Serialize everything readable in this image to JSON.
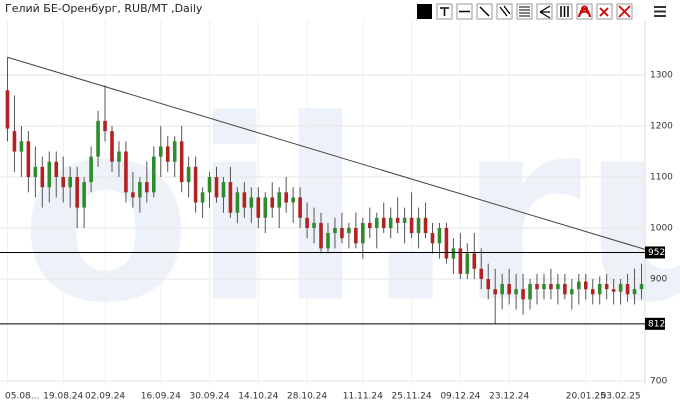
{
  "chart_data": {
    "type": "candlestick",
    "title": "Гелий БЕ-Оренбург, RUB/MT ,Daily",
    "watermark": "oil.ru",
    "categories": [
      "05.08...",
      null,
      null,
      null,
      null,
      null,
      null,
      null,
      "19.08.24",
      null,
      null,
      null,
      null,
      null,
      "02.09.24",
      null,
      null,
      null,
      null,
      null,
      null,
      null,
      "16.09.24",
      null,
      null,
      null,
      null,
      null,
      null,
      "30.09.24",
      null,
      null,
      null,
      null,
      null,
      null,
      "14.10.24",
      null,
      null,
      null,
      null,
      null,
      null,
      "28.10.24",
      null,
      null,
      null,
      null,
      null,
      null,
      null,
      "11.11.24",
      null,
      null,
      null,
      null,
      null,
      null,
      "25.11.24",
      null,
      null,
      null,
      null,
      null,
      null,
      "09.12.24",
      null,
      null,
      null,
      null,
      null,
      null,
      "23.12.24",
      null,
      null,
      null,
      null,
      null,
      null,
      null,
      null,
      null,
      null,
      "20.01.25",
      null,
      null,
      null,
      null,
      "03.02.25",
      null,
      null,
      null
    ],
    "open": [
      1270,
      1190,
      1150,
      1170,
      1100,
      1120,
      1080,
      1130,
      1100,
      1080,
      1100,
      1040,
      1090,
      1140,
      1210,
      1190,
      1130,
      1150,
      1070,
      1060,
      1090,
      1070,
      1140,
      1160,
      1130,
      1170,
      1090,
      1120,
      1050,
      1070,
      1100,
      1060,
      1090,
      1030,
      1070,
      1040,
      1060,
      1020,
      1060,
      1040,
      1070,
      1050,
      1060,
      1020,
      1000,
      1010,
      960,
      990,
      1000,
      990,
      1000,
      970,
      1010,
      1000,
      1020,
      1000,
      1020,
      1010,
      1020,
      990,
      1020,
      990,
      970,
      1000,
      940,
      960,
      910,
      950,
      920,
      900,
      880,
      870,
      890,
      870,
      880,
      860,
      890,
      880,
      890,
      880,
      890,
      870,
      880,
      895,
      880,
      870,
      890,
      880,
      875,
      890,
      870,
      880
    ],
    "high": [
      1335,
      1260,
      1200,
      1190,
      1160,
      1140,
      1150,
      1150,
      1140,
      1120,
      1120,
      1100,
      1160,
      1230,
      1280,
      1200,
      1170,
      1170,
      1110,
      1100,
      1130,
      1160,
      1200,
      1180,
      1180,
      1200,
      1140,
      1140,
      1080,
      1110,
      1120,
      1100,
      1120,
      1080,
      1090,
      1080,
      1080,
      1070,
      1090,
      1080,
      1100,
      1080,
      1080,
      1050,
      1040,
      1030,
      1010,
      1020,
      1030,
      1010,
      1030,
      1020,
      1040,
      1030,
      1050,
      1040,
      1060,
      1040,
      1070,
      1040,
      1050,
      1010,
      1010,
      1010,
      980,
      990,
      970,
      990,
      960,
      930,
      920,
      910,
      920,
      910,
      910,
      900,
      910,
      910,
      920,
      910,
      910,
      900,
      910,
      910,
      900,
      905,
      910,
      900,
      900,
      910,
      920,
      930
    ],
    "low": [
      1170,
      1110,
      1100,
      1070,
      1060,
      1040,
      1050,
      1060,
      1050,
      1040,
      1000,
      1000,
      1070,
      1120,
      1170,
      1110,
      1100,
      1050,
      1040,
      1030,
      1050,
      1060,
      1100,
      1110,
      1100,
      1070,
      1060,
      1030,
      1020,
      1040,
      1050,
      1030,
      1020,
      1010,
      1020,
      1010,
      1000,
      990,
      1020,
      1000,
      1030,
      1010,
      1000,
      980,
      970,
      950,
      950,
      960,
      970,
      960,
      960,
      940,
      980,
      960,
      990,
      980,
      990,
      970,
      980,
      960,
      980,
      950,
      940,
      930,
      910,
      900,
      900,
      900,
      880,
      860,
      812,
      840,
      850,
      840,
      830,
      840,
      850,
      860,
      860,
      850,
      860,
      840,
      850,
      860,
      850,
      850,
      860,
      850,
      850,
      855,
      850,
      860
    ],
    "close": [
      1195,
      1150,
      1170,
      1100,
      1120,
      1080,
      1130,
      1100,
      1080,
      1100,
      1040,
      1090,
      1140,
      1210,
      1190,
      1130,
      1150,
      1070,
      1060,
      1090,
      1070,
      1140,
      1160,
      1130,
      1170,
      1090,
      1120,
      1050,
      1070,
      1100,
      1060,
      1090,
      1030,
      1070,
      1040,
      1060,
      1020,
      1060,
      1040,
      1070,
      1050,
      1060,
      1020,
      1000,
      1010,
      960,
      990,
      1000,
      980,
      1000,
      970,
      1010,
      1000,
      1020,
      1000,
      1020,
      1010,
      1020,
      990,
      1020,
      990,
      970,
      1000,
      940,
      960,
      910,
      950,
      920,
      900,
      880,
      870,
      890,
      870,
      880,
      860,
      890,
      880,
      890,
      880,
      890,
      870,
      880,
      895,
      880,
      870,
      890,
      880,
      875,
      890,
      870,
      880,
      890
    ],
    "up_color": "#2e8b2e",
    "down_color": "#b22222",
    "wick_color": "#555555",
    "ylim": [
      692,
      1408
    ],
    "yticks": [
      700,
      900,
      1000,
      1100,
      1200,
      1300
    ],
    "grid": true,
    "levels": [
      952,
      812
    ],
    "trendline": {
      "x": [
        0,
        91.5
      ],
      "y": [
        1335,
        958
      ]
    }
  }
}
